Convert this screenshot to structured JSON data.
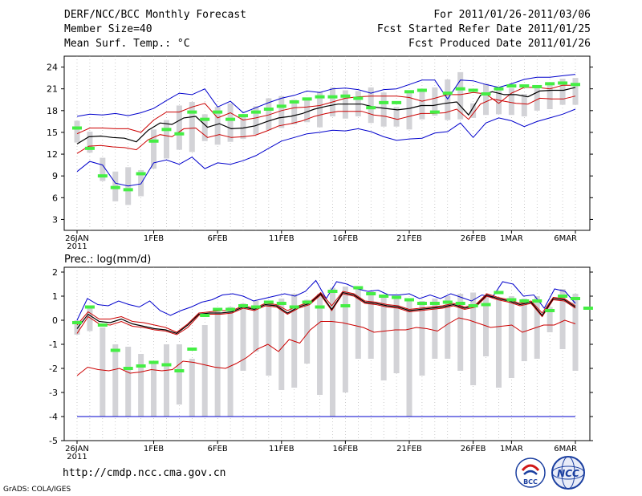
{
  "header": {
    "title": "DERF/NCC/BCC Monthly Forecast",
    "member_size": "Member Size=40",
    "variable": "Mean Surf. Temp.: °C",
    "period": "For 2011/01/26-2011/03/06",
    "started": "Fcst Started Refer Date 2011/01/25",
    "produced": "Fcst Produced Date 2011/01/26"
  },
  "footer": {
    "url": "http://cmdp.ncc.cma.gov.cn",
    "grads": "GrADS: COLA/IGES",
    "logo_bcc": "BCC",
    "logo_ncc": "NCC"
  },
  "chart_data": [
    {
      "type": "line",
      "title": "Mean Surf. Temp.: °C",
      "ylim": [
        1.5,
        25.5
      ],
      "yticks": [
        3,
        6,
        9,
        12,
        15,
        18,
        21,
        24
      ],
      "tick_labels": [
        "26JAN\n2011",
        "1FEB",
        "6FEB",
        "11FEB",
        "16FEB",
        "21FEB",
        "26FEB",
        "1MAR",
        "6MAR"
      ],
      "tick_days": [
        0,
        6,
        11,
        16,
        21,
        26,
        31,
        34,
        39
      ],
      "colors": {
        "mean": "#000000",
        "std": "#cc0000",
        "extreme": "#0000cc",
        "box": "#d3d3d7",
        "obs": "#44ee44"
      },
      "series": [
        {
          "name": "max",
          "values": [
            17.2,
            17.5,
            17.4,
            17.6,
            17.3,
            17.7,
            18.3,
            19.4,
            20.4,
            20.2,
            21.0,
            18.5,
            19.3,
            17.7,
            18.4,
            19.1,
            19.7,
            20.1,
            20.7,
            20.5,
            21.0,
            21.1,
            20.9,
            20.4,
            20.9,
            21.0,
            21.6,
            22.2,
            22.2,
            19.6,
            22.2,
            22.1,
            21.6,
            21.2,
            21.7,
            22.3,
            22.6,
            22.6,
            22.8,
            23.0
          ]
        },
        {
          "name": "upper",
          "values": [
            14.8,
            15.6,
            15.6,
            15.5,
            15.5,
            15.0,
            16.7,
            17.8,
            17.8,
            18.5,
            19.0,
            17.0,
            17.7,
            16.7,
            17.0,
            17.4,
            18.0,
            18.4,
            18.5,
            18.7,
            19.2,
            19.7,
            19.9,
            20.0,
            20.0,
            20.0,
            19.8,
            19.3,
            19.7,
            20.2,
            20.2,
            20.5,
            20.3,
            19.0,
            20.4,
            21.2,
            21.2,
            21.0,
            21.5,
            21.5
          ]
        },
        {
          "name": "mean",
          "values": [
            13.4,
            14.4,
            14.5,
            14.3,
            14.2,
            13.7,
            15.3,
            16.3,
            16.1,
            17.0,
            17.2,
            15.7,
            16.2,
            15.5,
            15.6,
            15.9,
            16.5,
            17.0,
            17.2,
            17.6,
            18.2,
            18.6,
            18.9,
            18.9,
            18.9,
            18.5,
            18.3,
            18.1,
            18.3,
            18.7,
            18.7,
            19.0,
            19.2,
            17.4,
            20.1,
            20.6,
            20.2,
            20.2,
            19.9,
            20.7,
            20.8,
            20.8,
            21.2
          ]
        },
        {
          "name": "lower",
          "values": [
            12.1,
            13.1,
            13.2,
            13.0,
            12.9,
            12.6,
            14.0,
            14.7,
            14.4,
            15.5,
            15.6,
            14.3,
            14.7,
            14.3,
            14.4,
            14.6,
            15.2,
            15.9,
            16.2,
            16.6,
            17.2,
            17.6,
            17.9,
            17.9,
            17.9,
            17.4,
            17.2,
            16.8,
            17.2,
            17.6,
            17.6,
            17.7,
            18.2,
            16.8,
            18.9,
            19.6,
            19.3,
            19.0,
            18.9,
            19.7,
            19.6,
            19.6,
            20.0
          ]
        },
        {
          "name": "min",
          "values": [
            9.6,
            11.0,
            10.5,
            8.0,
            7.6,
            7.9,
            10.8,
            11.2,
            10.6,
            11.6,
            10.0,
            10.8,
            10.6,
            11.1,
            11.8,
            12.8,
            13.8,
            14.3,
            14.8,
            15.0,
            15.3,
            15.2,
            15.5,
            15.1,
            14.4,
            13.9,
            14.1,
            14.2,
            14.9,
            15.1,
            16.3,
            14.3,
            16.3,
            17.0,
            16.6,
            15.8,
            16.5,
            17.0,
            17.5,
            18.2
          ]
        },
        {
          "name": "box_top",
          "values": [
            16.6,
            15.1,
            11.5,
            9.6,
            10.2,
            9.8,
            15.4,
            16.7,
            18.7,
            19.2,
            17.5,
            18.5,
            19.0,
            17.3,
            18.6,
            19.7,
            20.0,
            19.5,
            19.8,
            20.6,
            21.2,
            20.8,
            20.7,
            21.2,
            20.5,
            18.5,
            20.8,
            20.9,
            21.2,
            22.3,
            23.3,
            19.0,
            21.7,
            20.9,
            21.1,
            20.3,
            21.3,
            21.8,
            22.4,
            22.5
          ]
        },
        {
          "name": "box_bottom",
          "values": [
            13.6,
            12.2,
            8.3,
            5.5,
            5.0,
            6.2,
            10.0,
            11.4,
            12.6,
            12.3,
            13.8,
            13.3,
            13.7,
            14.1,
            14.7,
            15.3,
            15.6,
            16.1,
            16.4,
            15.7,
            17.2,
            16.9,
            17.2,
            16.3,
            15.8,
            15.8,
            15.4,
            16.8,
            17.3,
            16.7,
            16.8,
            17.0,
            17.4,
            17.5,
            17.4,
            17.2,
            18.0,
            18.2,
            18.8,
            18.8
          ]
        },
        {
          "name": "observed",
          "values": [
            15.6,
            12.8,
            9.0,
            7.4,
            7.1,
            9.3,
            13.8,
            15.4,
            14.8,
            17.8,
            16.8,
            17.8,
            16.8,
            17.3,
            17.8,
            18.2,
            18.6,
            19.2,
            19.6,
            19.9,
            19.9,
            20.0,
            19.7,
            18.4,
            19.1,
            19.1,
            20.6,
            20.8,
            17.8,
            20.4,
            21.0,
            20.8,
            20.3,
            21.0,
            21.4,
            21.4,
            21.3,
            21.7,
            21.8,
            21.6
          ]
        }
      ]
    },
    {
      "type": "line",
      "title": "Prec.: log(mm/d)",
      "ylim": [
        -5,
        2.2
      ],
      "yticks": [
        -5,
        -4,
        -3,
        -2,
        -1,
        0,
        1,
        2
      ],
      "tick_labels": [
        "26JAN\n2011",
        "1FEB",
        "6FEB",
        "11FEB",
        "16FEB",
        "21FEB",
        "26FEB",
        "1MAR",
        "6MAR"
      ],
      "tick_days": [
        0,
        6,
        11,
        16,
        21,
        26,
        31,
        34,
        39
      ],
      "colors": {
        "mean": "#000000",
        "std": "#cc0000",
        "extreme": "#0000cc",
        "box": "#d3d3d7",
        "obs": "#44ee44"
      },
      "series": [
        {
          "name": "max",
          "values": [
            0.0,
            0.9,
            0.65,
            0.6,
            0.8,
            0.65,
            0.55,
            0.8,
            0.4,
            0.2,
            0.4,
            0.55,
            0.75,
            0.85,
            1.05,
            1.1,
            1.0,
            0.8,
            0.9,
            1.0,
            1.1,
            1.0,
            1.2,
            1.65,
            0.9,
            1.6,
            1.5,
            1.3,
            1.2,
            1.25,
            1.05,
            1.05,
            1.1,
            0.9,
            1.05,
            0.9,
            1.1,
            0.95,
            0.8,
            1.05,
            0.95,
            1.6,
            1.5,
            1.0,
            1.05,
            0.5,
            1.3,
            1.2,
            0.7
          ]
        },
        {
          "name": "mean",
          "values": [
            -0.35,
            0.25,
            -0.05,
            -0.1,
            0.05,
            -0.15,
            -0.25,
            -0.35,
            -0.4,
            -0.55,
            -0.2,
            0.25,
            0.3,
            0.3,
            0.35,
            0.55,
            0.45,
            0.65,
            0.6,
            0.3,
            0.55,
            0.7,
            1.1,
            0.45,
            1.15,
            1.05,
            0.75,
            0.7,
            0.6,
            0.55,
            0.4,
            0.45,
            0.5,
            0.55,
            0.65,
            0.5,
            0.6,
            1.05,
            0.9,
            0.8,
            0.65,
            0.75,
            0.2,
            0.9,
            0.85,
            0.55
          ]
        },
        {
          "name": "upper",
          "values": [
            -0.2,
            0.35,
            0.05,
            0.05,
            0.15,
            -0.05,
            -0.1,
            -0.2,
            -0.3,
            -0.5,
            -0.15,
            0.3,
            0.35,
            0.4,
            0.4,
            0.6,
            0.5,
            0.7,
            0.65,
            0.4,
            0.6,
            0.75,
            1.15,
            0.6,
            1.2,
            1.1,
            0.8,
            0.75,
            0.65,
            0.6,
            0.45,
            0.5,
            0.55,
            0.6,
            0.7,
            0.55,
            0.65,
            1.1,
            0.95,
            0.85,
            0.7,
            0.8,
            0.3,
            0.95,
            0.9,
            0.6
          ]
        },
        {
          "name": "lower",
          "values": [
            -0.55,
            0.15,
            -0.15,
            -0.2,
            -0.05,
            -0.25,
            -0.3,
            -0.4,
            -0.45,
            -0.6,
            -0.3,
            0.2,
            0.25,
            0.25,
            0.3,
            0.5,
            0.4,
            0.6,
            0.55,
            0.25,
            0.5,
            0.65,
            1.05,
            0.4,
            1.1,
            1.0,
            0.7,
            0.65,
            0.55,
            0.5,
            0.35,
            0.4,
            0.45,
            0.5,
            0.6,
            0.45,
            0.55,
            1.0,
            0.85,
            0.75,
            0.6,
            0.7,
            0.15,
            0.85,
            0.8,
            0.5
          ]
        },
        {
          "name": "lowstd",
          "values": [
            -2.3,
            -1.95,
            -2.05,
            -2.1,
            -2.0,
            -2.2,
            -2.15,
            -2.05,
            -2.1,
            -2.05,
            -1.7,
            -1.75,
            -1.85,
            -1.95,
            -2.0,
            -1.8,
            -1.55,
            -1.2,
            -1.0,
            -1.3,
            -0.8,
            -0.95,
            -0.4,
            -0.05,
            -0.05,
            -0.1,
            -0.2,
            -0.3,
            -0.5,
            -0.45,
            -0.4,
            -0.4,
            -0.3,
            -0.35,
            -0.45,
            -0.15,
            0.1,
            0.0,
            -0.15,
            -0.3,
            -0.25,
            -0.2,
            -0.5,
            -0.35,
            -0.2,
            -0.2,
            0.0,
            -0.15
          ]
        },
        {
          "name": "min",
          "values": [
            -4.0,
            -4.0,
            -4.0,
            -4.0,
            -4.0,
            -4.0,
            -4.0,
            -4.0,
            -4.0,
            -4.0,
            -4.0,
            -4.0,
            -4.0,
            -4.0,
            -4.0,
            -4.0,
            -4.0,
            -4.0,
            -4.0,
            -4.0,
            -4.0,
            -4.0,
            -4.0,
            -4.0,
            -4.0,
            -4.0,
            -4.0,
            -4.0,
            -4.0,
            -4.0,
            -4.0,
            -4.0,
            -4.0,
            -4.0,
            -4.0,
            -4.0,
            -4.0,
            -4.0,
            -4.0,
            -4.0
          ]
        },
        {
          "name": "box_top",
          "values": [
            0.0,
            0.55,
            -0.3,
            -1.0,
            -1.1,
            -1.4,
            -1.8,
            -1.0,
            -1.0,
            -1.6,
            -0.2,
            0.4,
            0.55,
            0.7,
            0.8,
            0.8,
            0.9,
            1.1,
            0.85,
            1.1,
            1.35,
            1.4,
            1.3,
            1.2,
            1.05,
            0.9,
            0.85,
            0.8,
            0.9,
            1.0,
            1.1,
            1.15,
            1.0,
            0.85,
            1.0,
            0.9,
            1.0,
            0.55,
            1.3,
            1.1
          ]
        },
        {
          "name": "box_bottom",
          "values": [
            -0.6,
            -0.45,
            -4.0,
            -4.0,
            -4.0,
            -4.0,
            -4.0,
            -4.0,
            -3.5,
            -4.0,
            -4.0,
            -4.0,
            -4.0,
            -2.1,
            -1.3,
            -2.3,
            -2.9,
            -2.8,
            -1.8,
            -3.1,
            -4.0,
            -3.0,
            -1.6,
            -1.6,
            -2.5,
            -2.2,
            -4.0,
            -2.3,
            -1.6,
            -1.6,
            -2.1,
            -2.7,
            -1.5,
            -2.8,
            -2.4,
            -1.7,
            -1.6,
            -0.5,
            -1.2,
            -2.1
          ]
        },
        {
          "name": "observed",
          "values": [
            -0.1,
            0.55,
            -0.2,
            -1.25,
            -2.0,
            -1.9,
            -1.75,
            -1.85,
            -2.1,
            -1.2,
            0.2,
            0.45,
            0.45,
            0.6,
            0.55,
            0.75,
            0.7,
            0.55,
            0.75,
            0.55,
            1.2,
            0.6,
            1.35,
            1.1,
            1.0,
            0.95,
            0.85,
            0.7,
            0.7,
            0.75,
            0.7,
            0.6,
            0.65,
            1.15,
            0.85,
            0.8,
            0.8,
            0.4,
            1.0,
            0.9,
            0.5
          ]
        }
      ]
    }
  ]
}
